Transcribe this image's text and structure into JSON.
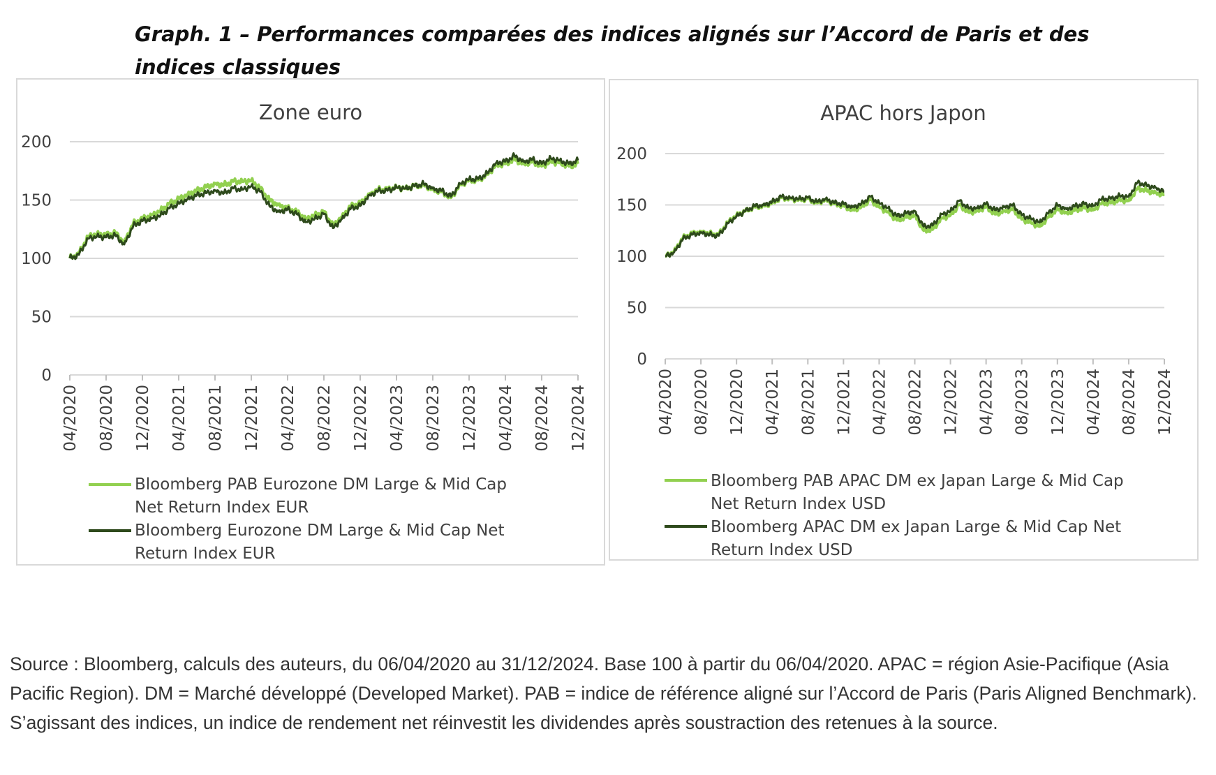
{
  "figure_title": "Graph. 1 – Performances comparées des indices alignés sur l’Accord de Paris et des indices classiques",
  "source_note": "Source : Bloomberg, calculs des auteurs, du 06/04/2020 au 31/12/2024. Base 100 à partir du 06/04/2020. APAC = région Asie-Pacifique (Asia Pacific Region). DM = Marché développé (Developed Market). PAB = indice de référence aligné sur l’Accord de Paris (Paris Aligned Benchmark). S’agissant des indices, un indice de rendement net réinvestit les dividendes après soustraction des retenues à la source.",
  "colors": {
    "light_green": "#92d050",
    "dark_green": "#2e4a1c",
    "grid": "#d9d9d9",
    "border": "#d9d9d9",
    "text": "#404040"
  },
  "chart_data": [
    {
      "type": "line",
      "title": "Zone euro",
      "ylim": [
        0,
        200
      ],
      "yticks": [
        0,
        50,
        100,
        150,
        200
      ],
      "xlim": [
        "04/2020",
        "12/2024"
      ],
      "xticks": [
        "04/2020",
        "08/2020",
        "12/2020",
        "04/2021",
        "08/2021",
        "12/2021",
        "04/2022",
        "08/2022",
        "12/2022",
        "04/2023",
        "08/2023",
        "12/2023",
        "04/2024",
        "08/2024",
        "12/2024"
      ],
      "grid": true,
      "legend_position": "bottom",
      "series": [
        {
          "name": "Bloomberg PAB Eurozone DM Large & Mid Cap Net Return Index EUR",
          "color": "#92d050",
          "points": [
            [
              "04/2020",
              100
            ],
            [
              "05/2020",
              104
            ],
            [
              "06/2020",
              119
            ],
            [
              "07/2020",
              121
            ],
            [
              "08/2020",
              120
            ],
            [
              "09/2020",
              122
            ],
            [
              "10/2020",
              114
            ],
            [
              "11/2020",
              130
            ],
            [
              "12/2020",
              134
            ],
            [
              "01/2021",
              137
            ],
            [
              "02/2021",
              141
            ],
            [
              "03/2021",
              147
            ],
            [
              "04/2021",
              151
            ],
            [
              "05/2021",
              155
            ],
            [
              "06/2021",
              158
            ],
            [
              "07/2021",
              161
            ],
            [
              "08/2021",
              164
            ],
            [
              "09/2021",
              163
            ],
            [
              "10/2021",
              166
            ],
            [
              "11/2021",
              166
            ],
            [
              "12/2021",
              167
            ],
            [
              "01/2022",
              160
            ],
            [
              "02/2022",
              150
            ],
            [
              "03/2022",
              146
            ],
            [
              "04/2022",
              143
            ],
            [
              "05/2022",
              140
            ],
            [
              "06/2022",
              134
            ],
            [
              "07/2022",
              137
            ],
            [
              "08/2022",
              140
            ],
            [
              "09/2022",
              128
            ],
            [
              "10/2022",
              136
            ],
            [
              "11/2022",
              145
            ],
            [
              "12/2022",
              147
            ],
            [
              "01/2023",
              155
            ],
            [
              "02/2023",
              159
            ],
            [
              "03/2023",
              159
            ],
            [
              "04/2023",
              161
            ],
            [
              "05/2023",
              160
            ],
            [
              "06/2023",
              162
            ],
            [
              "07/2023",
              163
            ],
            [
              "08/2023",
              159
            ],
            [
              "09/2023",
              157
            ],
            [
              "10/2023",
              152
            ],
            [
              "11/2023",
              163
            ],
            [
              "12/2023",
              167
            ],
            [
              "01/2024",
              167
            ],
            [
              "02/2024",
              172
            ],
            [
              "03/2024",
              180
            ],
            [
              "04/2024",
              181
            ],
            [
              "05/2024",
              185
            ],
            [
              "06/2024",
              181
            ],
            [
              "07/2024",
              183
            ],
            [
              "08/2024",
              179
            ],
            [
              "09/2024",
              183
            ],
            [
              "10/2024",
              182
            ],
            [
              "11/2024",
              179
            ],
            [
              "12/2024",
              181
            ]
          ]
        },
        {
          "name": "Bloomberg Eurozone DM Large & Mid Cap Net Return Index EUR",
          "color": "#2e4a1c",
          "points": [
            [
              "04/2020",
              100
            ],
            [
              "05/2020",
              103
            ],
            [
              "06/2020",
              117
            ],
            [
              "07/2020",
              119
            ],
            [
              "08/2020",
              118
            ],
            [
              "09/2020",
              120
            ],
            [
              "10/2020",
              112
            ],
            [
              "11/2020",
              128
            ],
            [
              "12/2020",
              132
            ],
            [
              "01/2021",
              134
            ],
            [
              "02/2021",
              137
            ],
            [
              "03/2021",
              143
            ],
            [
              "04/2021",
              147
            ],
            [
              "05/2021",
              151
            ],
            [
              "06/2021",
              154
            ],
            [
              "07/2021",
              156
            ],
            [
              "08/2021",
              158
            ],
            [
              "09/2021",
              156
            ],
            [
              "10/2021",
              160
            ],
            [
              "11/2021",
              159
            ],
            [
              "12/2021",
              162
            ],
            [
              "01/2022",
              157
            ],
            [
              "02/2022",
              145
            ],
            [
              "03/2022",
              140
            ],
            [
              "04/2022",
              142
            ],
            [
              "05/2022",
              138
            ],
            [
              "06/2022",
              131
            ],
            [
              "07/2022",
              134
            ],
            [
              "08/2022",
              138
            ],
            [
              "09/2022",
              126
            ],
            [
              "10/2022",
              134
            ],
            [
              "11/2022",
              143
            ],
            [
              "12/2022",
              145
            ],
            [
              "01/2023",
              154
            ],
            [
              "02/2023",
              158
            ],
            [
              "03/2023",
              158
            ],
            [
              "04/2023",
              161
            ],
            [
              "05/2023",
              160
            ],
            [
              "06/2023",
              162
            ],
            [
              "07/2023",
              164
            ],
            [
              "08/2023",
              160
            ],
            [
              "09/2023",
              158
            ],
            [
              "10/2023",
              153
            ],
            [
              "11/2023",
              164
            ],
            [
              "12/2023",
              168
            ],
            [
              "01/2024",
              168
            ],
            [
              "02/2024",
              173
            ],
            [
              "03/2024",
              182
            ],
            [
              "04/2024",
              183
            ],
            [
              "05/2024",
              188
            ],
            [
              "06/2024",
              183
            ],
            [
              "07/2024",
              185
            ],
            [
              "08/2024",
              181
            ],
            [
              "09/2024",
              186
            ],
            [
              "10/2024",
              184
            ],
            [
              "11/2024",
              181
            ],
            [
              "12/2024",
              184
            ]
          ]
        }
      ]
    },
    {
      "type": "line",
      "title": "APAC hors Japon",
      "ylim": [
        0,
        200
      ],
      "yticks": [
        0,
        50,
        100,
        150,
        200
      ],
      "xlim": [
        "04/2020",
        "12/2024"
      ],
      "xticks": [
        "04/2020",
        "08/2020",
        "12/2020",
        "04/2021",
        "08/2021",
        "12/2021",
        "04/2022",
        "08/2022",
        "12/2022",
        "04/2023",
        "08/2023",
        "12/2023",
        "04/2024",
        "08/2024",
        "12/2024"
      ],
      "grid": true,
      "legend_position": "bottom",
      "series": [
        {
          "name": "Bloomberg PAB APAC DM ex Japan Large & Mid Cap Net Return Index USD",
          "color": "#92d050",
          "points": [
            [
              "04/2020",
              100
            ],
            [
              "05/2020",
              105
            ],
            [
              "06/2020",
              118
            ],
            [
              "07/2020",
              122
            ],
            [
              "08/2020",
              124
            ],
            [
              "09/2020",
              122
            ],
            [
              "10/2020",
              121
            ],
            [
              "11/2020",
              133
            ],
            [
              "12/2020",
              140
            ],
            [
              "01/2021",
              144
            ],
            [
              "02/2021",
              148
            ],
            [
              "03/2021",
              149
            ],
            [
              "04/2021",
              152
            ],
            [
              "05/2021",
              157
            ],
            [
              "06/2021",
              156
            ],
            [
              "07/2021",
              155
            ],
            [
              "08/2021",
              156
            ],
            [
              "09/2021",
              152
            ],
            [
              "10/2021",
              155
            ],
            [
              "11/2021",
              151
            ],
            [
              "12/2021",
              149
            ],
            [
              "01/2022",
              145
            ],
            [
              "02/2022",
              148
            ],
            [
              "03/2022",
              155
            ],
            [
              "04/2022",
              148
            ],
            [
              "05/2022",
              143
            ],
            [
              "06/2022",
              135
            ],
            [
              "07/2022",
              138
            ],
            [
              "08/2022",
              140
            ],
            [
              "09/2022",
              125
            ],
            [
              "10/2022",
              126
            ],
            [
              "11/2022",
              137
            ],
            [
              "12/2022",
              140
            ],
            [
              "01/2023",
              150
            ],
            [
              "02/2023",
              143
            ],
            [
              "03/2023",
              144
            ],
            [
              "04/2023",
              148
            ],
            [
              "05/2023",
              141
            ],
            [
              "06/2023",
              144
            ],
            [
              "07/2023",
              146
            ],
            [
              "08/2023",
              136
            ],
            [
              "09/2023",
              133
            ],
            [
              "10/2023",
              129
            ],
            [
              "11/2023",
              138
            ],
            [
              "12/2023",
              146
            ],
            [
              "01/2024",
              142
            ],
            [
              "02/2024",
              145
            ],
            [
              "03/2024",
              147
            ],
            [
              "04/2024",
              145
            ],
            [
              "05/2024",
              152
            ],
            [
              "06/2024",
              152
            ],
            [
              "07/2024",
              155
            ],
            [
              "08/2024",
              154
            ],
            [
              "09/2024",
              166
            ],
            [
              "10/2024",
              164
            ],
            [
              "11/2024",
              162
            ],
            [
              "12/2024",
              160
            ]
          ]
        },
        {
          "name": "Bloomberg APAC DM ex Japan Large & Mid Cap Net Return Index USD",
          "color": "#2e4a1c",
          "points": [
            [
              "04/2020",
              100
            ],
            [
              "05/2020",
              104
            ],
            [
              "06/2020",
              117
            ],
            [
              "07/2020",
              121
            ],
            [
              "08/2020",
              123
            ],
            [
              "09/2020",
              121
            ],
            [
              "10/2020",
              120
            ],
            [
              "11/2020",
              132
            ],
            [
              "12/2020",
              139
            ],
            [
              "01/2021",
              144
            ],
            [
              "02/2021",
              149
            ],
            [
              "03/2021",
              150
            ],
            [
              "04/2021",
              153
            ],
            [
              "05/2021",
              158
            ],
            [
              "06/2021",
              157
            ],
            [
              "07/2021",
              156
            ],
            [
              "08/2021",
              157
            ],
            [
              "09/2021",
              153
            ],
            [
              "10/2021",
              156
            ],
            [
              "11/2021",
              152
            ],
            [
              "12/2021",
              151
            ],
            [
              "01/2022",
              148
            ],
            [
              "02/2022",
              151
            ],
            [
              "03/2022",
              158
            ],
            [
              "04/2022",
              152
            ],
            [
              "05/2022",
              147
            ],
            [
              "06/2022",
              139
            ],
            [
              "07/2022",
              142
            ],
            [
              "08/2022",
              144
            ],
            [
              "09/2022",
              129
            ],
            [
              "10/2022",
              130
            ],
            [
              "11/2022",
              141
            ],
            [
              "12/2022",
              144
            ],
            [
              "01/2023",
              154
            ],
            [
              "02/2023",
              147
            ],
            [
              "03/2023",
              147
            ],
            [
              "04/2023",
              151
            ],
            [
              "05/2023",
              145
            ],
            [
              "06/2023",
              148
            ],
            [
              "07/2023",
              150
            ],
            [
              "08/2023",
              140
            ],
            [
              "09/2023",
              137
            ],
            [
              "10/2023",
              133
            ],
            [
              "11/2023",
              142
            ],
            [
              "12/2023",
              150
            ],
            [
              "01/2024",
              146
            ],
            [
              "02/2024",
              149
            ],
            [
              "03/2024",
              151
            ],
            [
              "04/2024",
              149
            ],
            [
              "05/2024",
              156
            ],
            [
              "06/2024",
              156
            ],
            [
              "07/2024",
              159
            ],
            [
              "08/2024",
              158
            ],
            [
              "09/2024",
              172
            ],
            [
              "10/2024",
              169
            ],
            [
              "11/2024",
              167
            ],
            [
              "12/2024",
              163
            ]
          ]
        }
      ]
    }
  ]
}
